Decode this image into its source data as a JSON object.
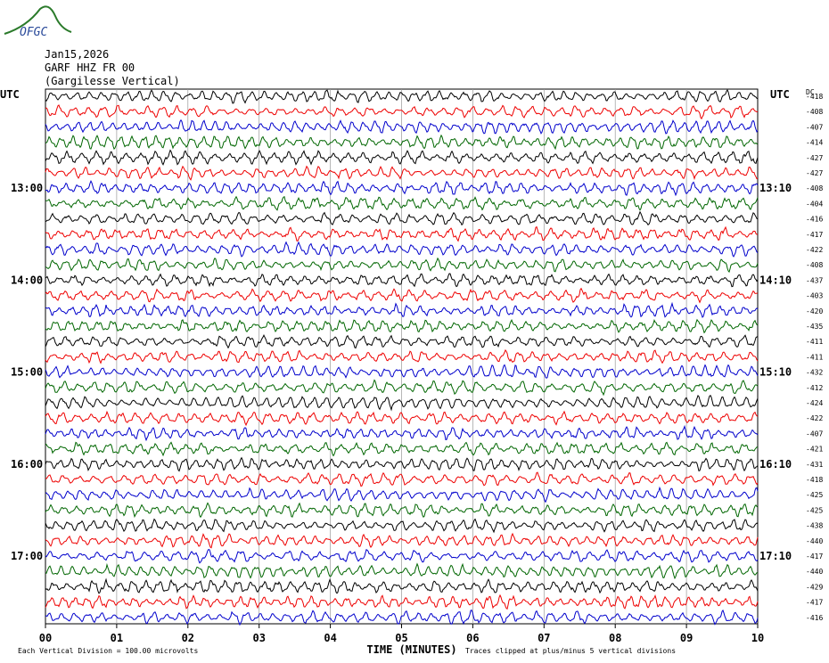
{
  "header": {
    "logo": "OFGC",
    "date": "Jan15,2026",
    "station": "GARF HHZ FR 00",
    "location": "(Gargilesse Vertical)"
  },
  "left_axis": {
    "top": "UTC",
    "hours": [
      "13:00",
      "14:00",
      "15:00",
      "16:00",
      "17:00"
    ]
  },
  "right_axis": {
    "top": "UTC",
    "hours": [
      "13:10",
      "14:10",
      "15:10",
      "16:10",
      "17:10"
    ]
  },
  "dc": {
    "label": "DC",
    "offsets": [
      -418,
      -408,
      -407,
      -414,
      -427,
      -427,
      -408,
      -404,
      -416,
      -417,
      -422,
      -408,
      -437,
      -403,
      -420,
      -435,
      -411,
      -411,
      -432,
      -412,
      -424,
      -422,
      -407,
      -421,
      -431,
      -418,
      -425,
      -425,
      -438,
      -440,
      -417,
      -440,
      -429,
      -417,
      -416
    ]
  },
  "x_axis": {
    "ticks": [
      "00",
      "01",
      "02",
      "03",
      "04",
      "05",
      "06",
      "07",
      "08",
      "09",
      "10"
    ],
    "title": "TIME (MINUTES)"
  },
  "footer": {
    "scale": "Each Vertical Division =  100.00 microvolts",
    "clip": "Traces clipped at plus/minus 5 vertical divisions"
  }
}
